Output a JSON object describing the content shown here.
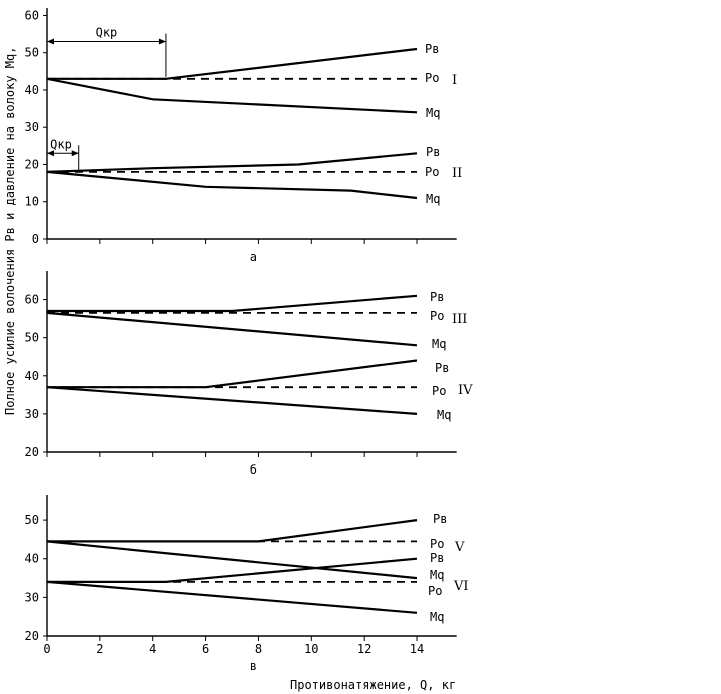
{
  "ylabel": "Полное усилие волочения Рв и давление на волоку Мq,",
  "xlabel": "Противонатяжение, Q, кг",
  "x_ticks": [
    0,
    2,
    4,
    6,
    8,
    10,
    12,
    14
  ],
  "chart_data": [
    {
      "type": "line",
      "panel_label": "а",
      "ylim": [
        0,
        62
      ],
      "y_ticks": [
        0,
        10,
        20,
        30,
        40,
        50,
        60
      ],
      "xlim": [
        0,
        15.5
      ],
      "annotations": [
        {
          "text": "Qкр",
          "range": [
            0,
            4.5
          ],
          "y": 53
        },
        {
          "text": "Qкр",
          "range": [
            0,
            1.2
          ],
          "y": 23
        }
      ],
      "series": [
        {
          "name": "Рв",
          "group": "I",
          "style": "solid",
          "x": [
            0,
            4.5,
            14
          ],
          "y": [
            43,
            43,
            51
          ]
        },
        {
          "name": "Ро",
          "group": "I",
          "style": "dashed",
          "x": [
            0,
            14
          ],
          "y": [
            43,
            43
          ]
        },
        {
          "name": "Мq",
          "group": "I",
          "style": "solid",
          "x": [
            0,
            4,
            14
          ],
          "y": [
            43,
            37.5,
            34
          ]
        },
        {
          "name": "Рв",
          "group": "II",
          "style": "solid",
          "x": [
            0,
            4,
            9.5,
            14
          ],
          "y": [
            18,
            19,
            20,
            23
          ]
        },
        {
          "name": "Ро",
          "group": "II",
          "style": "dashed",
          "x": [
            0,
            14
          ],
          "y": [
            18,
            18
          ]
        },
        {
          "name": "Мq",
          "group": "II",
          "style": "solid",
          "x": [
            0,
            6,
            11.5,
            14
          ],
          "y": [
            18,
            14,
            13,
            11
          ]
        }
      ]
    },
    {
      "type": "line",
      "panel_label": "б",
      "ylim": [
        20,
        67.5
      ],
      "y_ticks": [
        20,
        30,
        40,
        50,
        60
      ],
      "xlim": [
        0,
        15.5
      ],
      "series": [
        {
          "name": "Рв",
          "group": "III",
          "style": "solid",
          "x": [
            0,
            7,
            14
          ],
          "y": [
            57,
            57,
            61
          ]
        },
        {
          "name": "Ро",
          "group": "III",
          "style": "dashed",
          "x": [
            0,
            14
          ],
          "y": [
            56.5,
            56.5
          ]
        },
        {
          "name": "Мq",
          "group": "III",
          "style": "solid",
          "x": [
            0,
            14
          ],
          "y": [
            56.5,
            48
          ]
        },
        {
          "name": "Рв",
          "group": "IV",
          "style": "solid",
          "x": [
            0,
            6,
            14
          ],
          "y": [
            37,
            37,
            44
          ]
        },
        {
          "name": "Ро",
          "group": "IV",
          "style": "dashed",
          "x": [
            0,
            14
          ],
          "y": [
            37,
            37
          ]
        },
        {
          "name": "Мq",
          "group": "IV",
          "style": "solid",
          "x": [
            0,
            14
          ],
          "y": [
            37,
            30
          ]
        }
      ]
    },
    {
      "type": "line",
      "panel_label": "в",
      "ylim": [
        20,
        56.5
      ],
      "y_ticks": [
        20,
        30,
        40,
        50
      ],
      "xlim": [
        0,
        15.5
      ],
      "series": [
        {
          "name": "Рв",
          "group": "V",
          "style": "solid",
          "x": [
            0,
            8,
            14
          ],
          "y": [
            44.5,
            44.5,
            50
          ]
        },
        {
          "name": "Ро",
          "group": "V",
          "style": "dashed",
          "x": [
            0,
            14
          ],
          "y": [
            44.5,
            44.5
          ]
        },
        {
          "name": "Мq",
          "group": "V",
          "style": "solid",
          "x": [
            0,
            14
          ],
          "y": [
            44.5,
            35
          ]
        },
        {
          "name": "Рв",
          "group": "VI",
          "style": "solid",
          "x": [
            0,
            4.5,
            14
          ],
          "y": [
            34,
            34,
            40
          ]
        },
        {
          "name": "Ро",
          "group": "VI",
          "style": "dashed",
          "x": [
            0,
            14
          ],
          "y": [
            34,
            34
          ]
        },
        {
          "name": "Мq",
          "group": "VI",
          "style": "solid",
          "x": [
            0,
            14
          ],
          "y": [
            34,
            26
          ]
        }
      ]
    }
  ]
}
